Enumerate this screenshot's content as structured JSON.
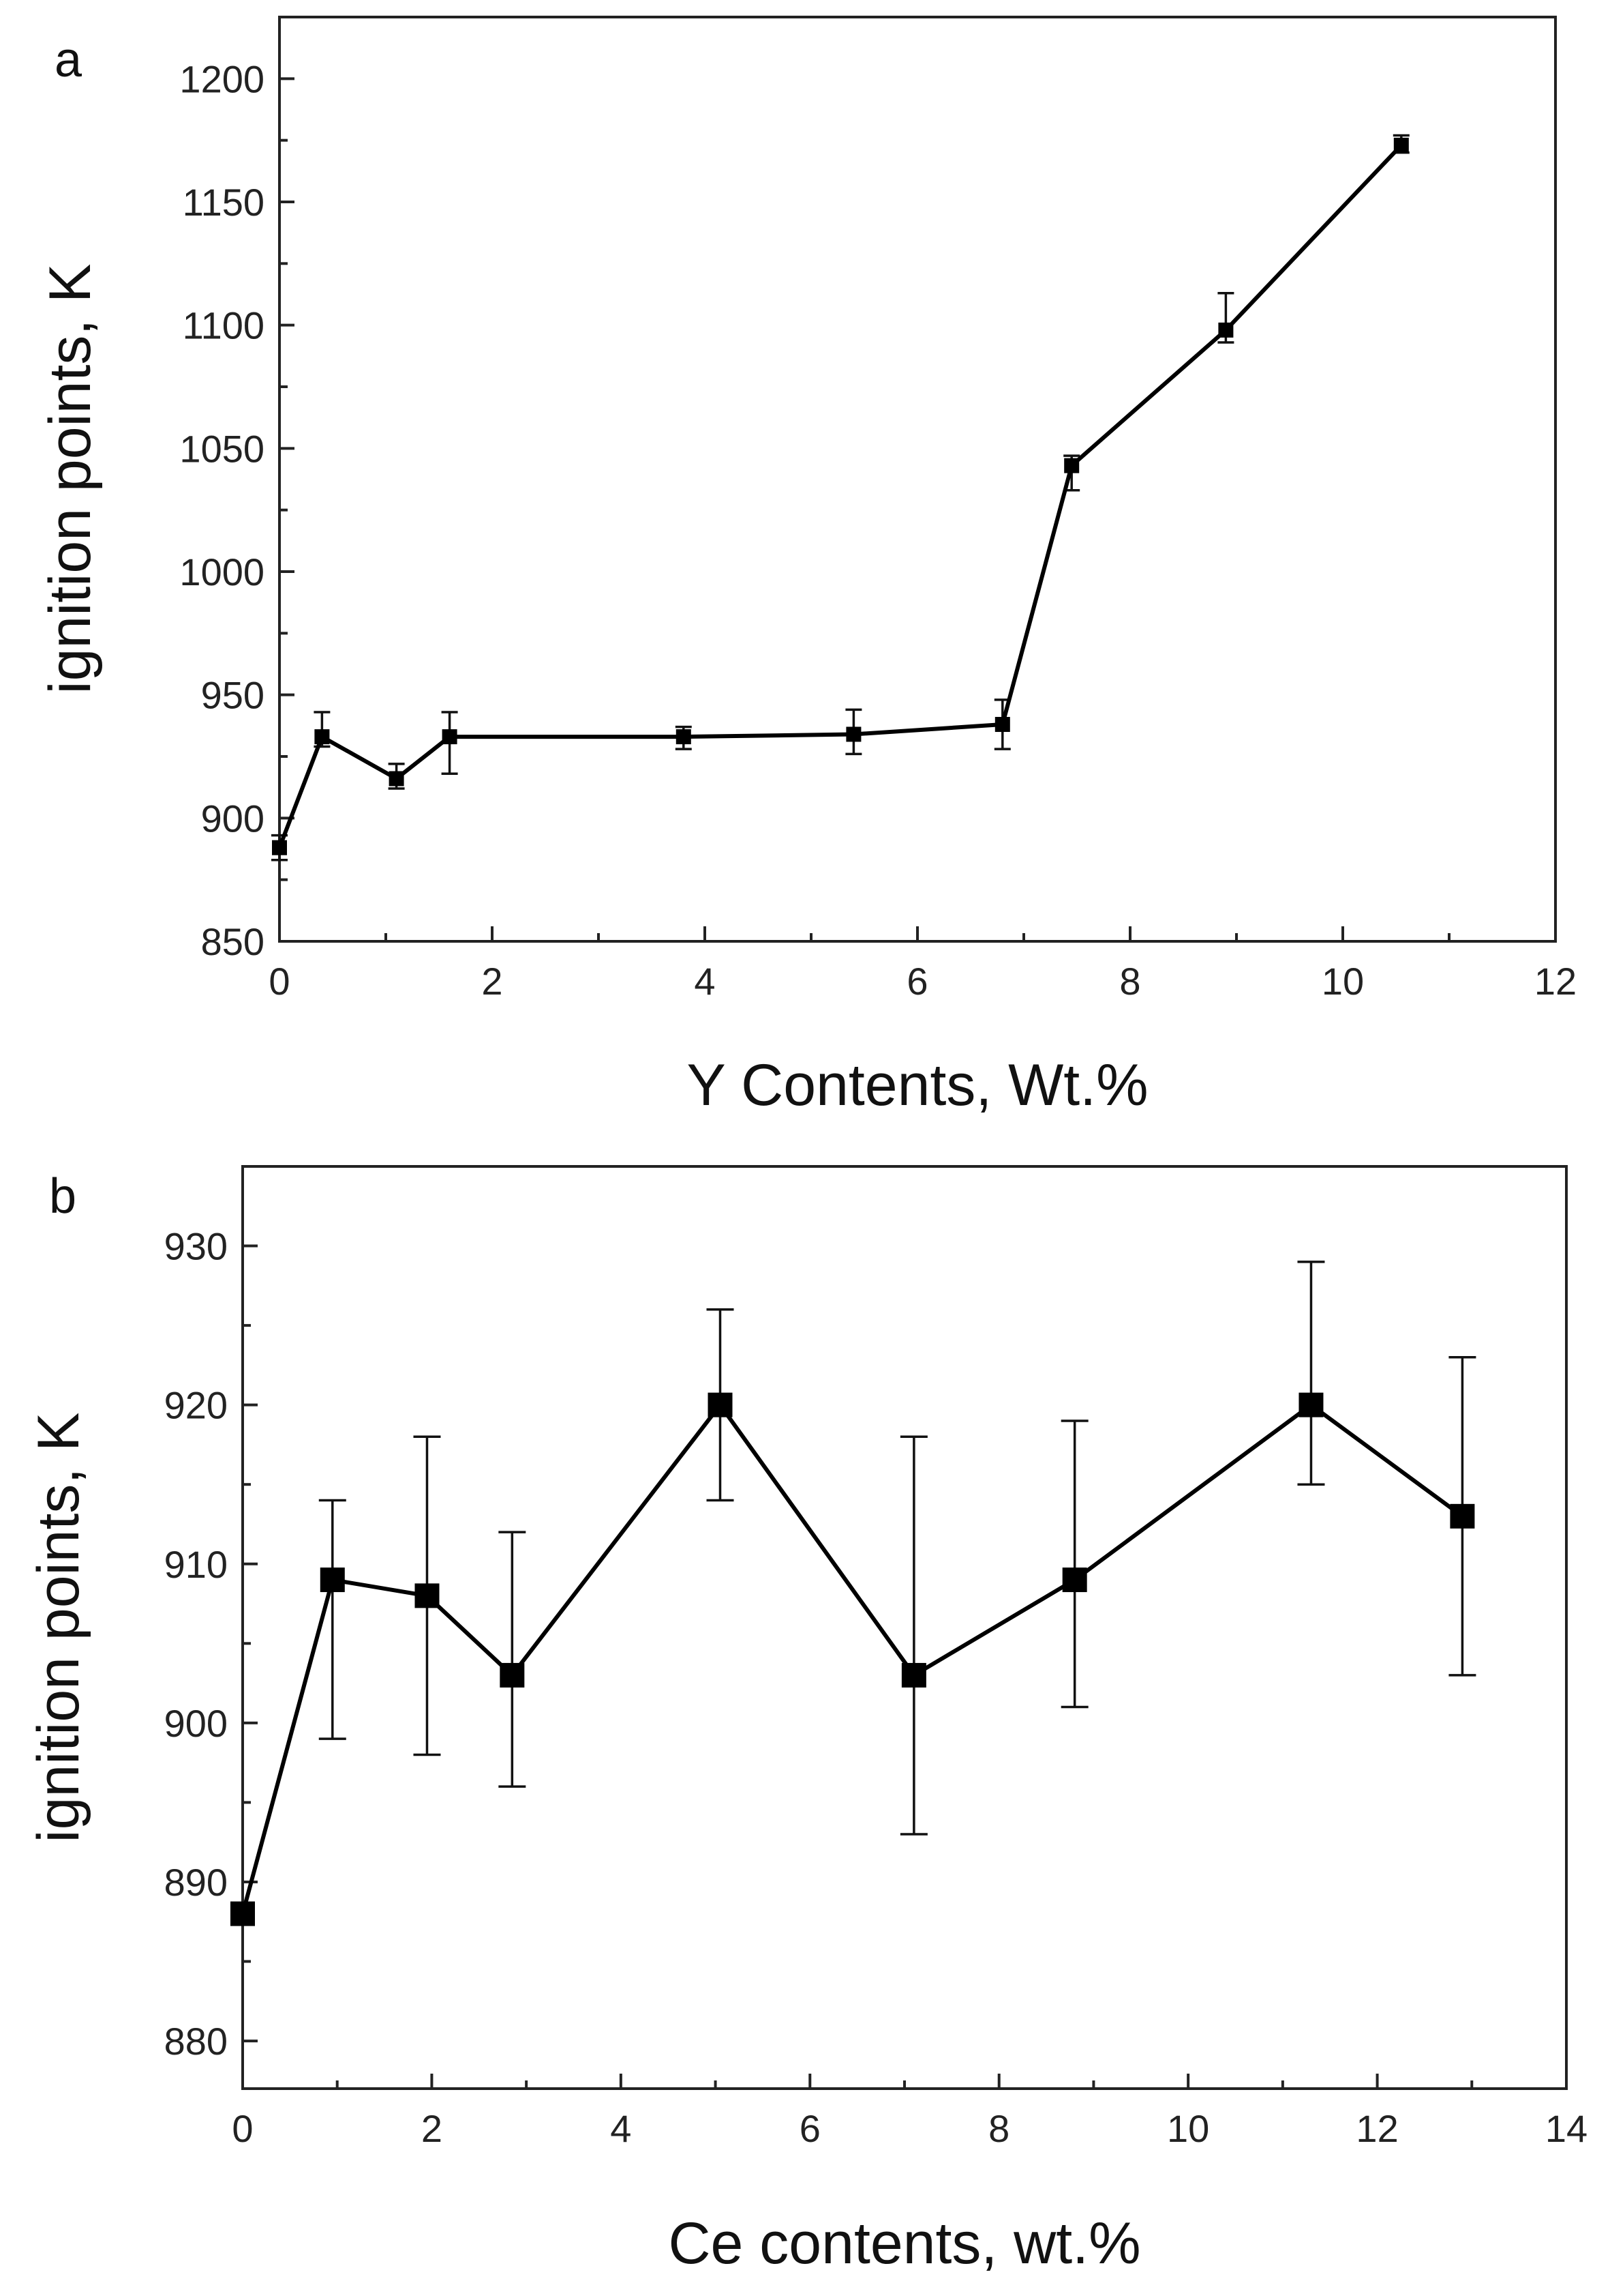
{
  "chart_data": [
    {
      "type": "line",
      "panel_label": "a",
      "title": "",
      "xlabel": "Y Contents, Wt.%",
      "ylabel": "ignition points, K",
      "xlim": [
        0,
        12
      ],
      "ylim": [
        850,
        1225
      ],
      "xticks": [
        0,
        2,
        4,
        6,
        8,
        10,
        12
      ],
      "yticks": [
        850,
        900,
        950,
        1000,
        1050,
        1100,
        1150,
        1200
      ],
      "grid": false,
      "series": [
        {
          "name": "Y",
          "x": [
            0,
            0.4,
            1.1,
            1.6,
            3.8,
            5.4,
            6.8,
            7.45,
            8.9,
            10.55
          ],
          "y": [
            888,
            933,
            916,
            933,
            933,
            934,
            938,
            1043,
            1098,
            1173
          ],
          "err_low": [
            5,
            4,
            4,
            15,
            5,
            8,
            10,
            10,
            5,
            3
          ],
          "err_high": [
            5,
            10,
            6,
            10,
            4,
            10,
            10,
            4,
            15,
            4
          ]
        }
      ]
    },
    {
      "type": "line",
      "panel_label": "b",
      "title": "",
      "xlabel": "Ce contents, wt.%",
      "ylabel": "ignition points, K",
      "xlim": [
        0,
        14
      ],
      "ylim": [
        877,
        935
      ],
      "xticks": [
        0,
        2,
        4,
        6,
        8,
        10,
        12,
        14
      ],
      "yticks": [
        880,
        890,
        900,
        910,
        920,
        930
      ],
      "grid": false,
      "series": [
        {
          "name": "Ce",
          "x": [
            0,
            0.95,
            1.95,
            2.85,
            5.05,
            7.1,
            8.8,
            11.3,
            12.9
          ],
          "y": [
            888,
            909,
            908,
            903,
            920,
            903,
            909,
            920,
            913
          ],
          "err_low": [
            0,
            10,
            10,
            7,
            6,
            10,
            8,
            5,
            10
          ],
          "err_high": [
            0,
            5,
            10,
            9,
            6,
            15,
            10,
            9,
            10
          ]
        }
      ]
    }
  ],
  "colors": {
    "line": "#000000",
    "axis": "#222222",
    "background": "#ffffff"
  }
}
